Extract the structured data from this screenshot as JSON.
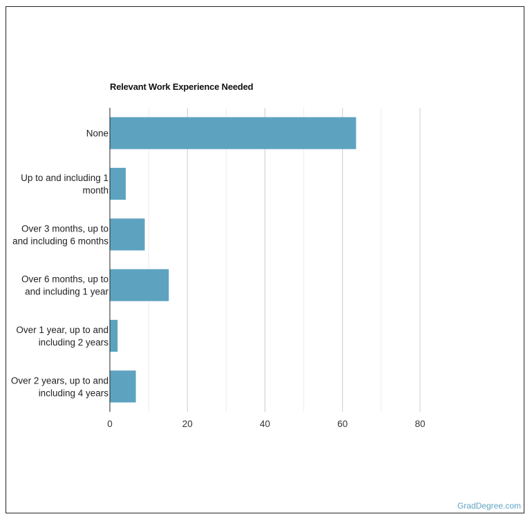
{
  "chart_data": {
    "type": "bar",
    "orientation": "horizontal",
    "title": "Relevant Work Experience Needed",
    "categories": [
      [
        "None"
      ],
      [
        "Up to and including 1",
        "month"
      ],
      [
        "Over 3 months, up to",
        "and including 6 months"
      ],
      [
        "Over 6 months, up to",
        "and including 1 year"
      ],
      [
        "Over 1 year, up to and",
        "including 2 years"
      ],
      [
        "Over 2 years, up to and",
        "including 4 years"
      ]
    ],
    "values": [
      63.5,
      4.1,
      9.0,
      15.2,
      2.0,
      6.7
    ],
    "xlim": [
      0,
      80
    ],
    "xticks": [
      0,
      20,
      40,
      60,
      80
    ],
    "grid": true,
    "bar_color": "#5da3c0",
    "grid_color": "#cccccc"
  },
  "watermark": "GradDegree.com"
}
